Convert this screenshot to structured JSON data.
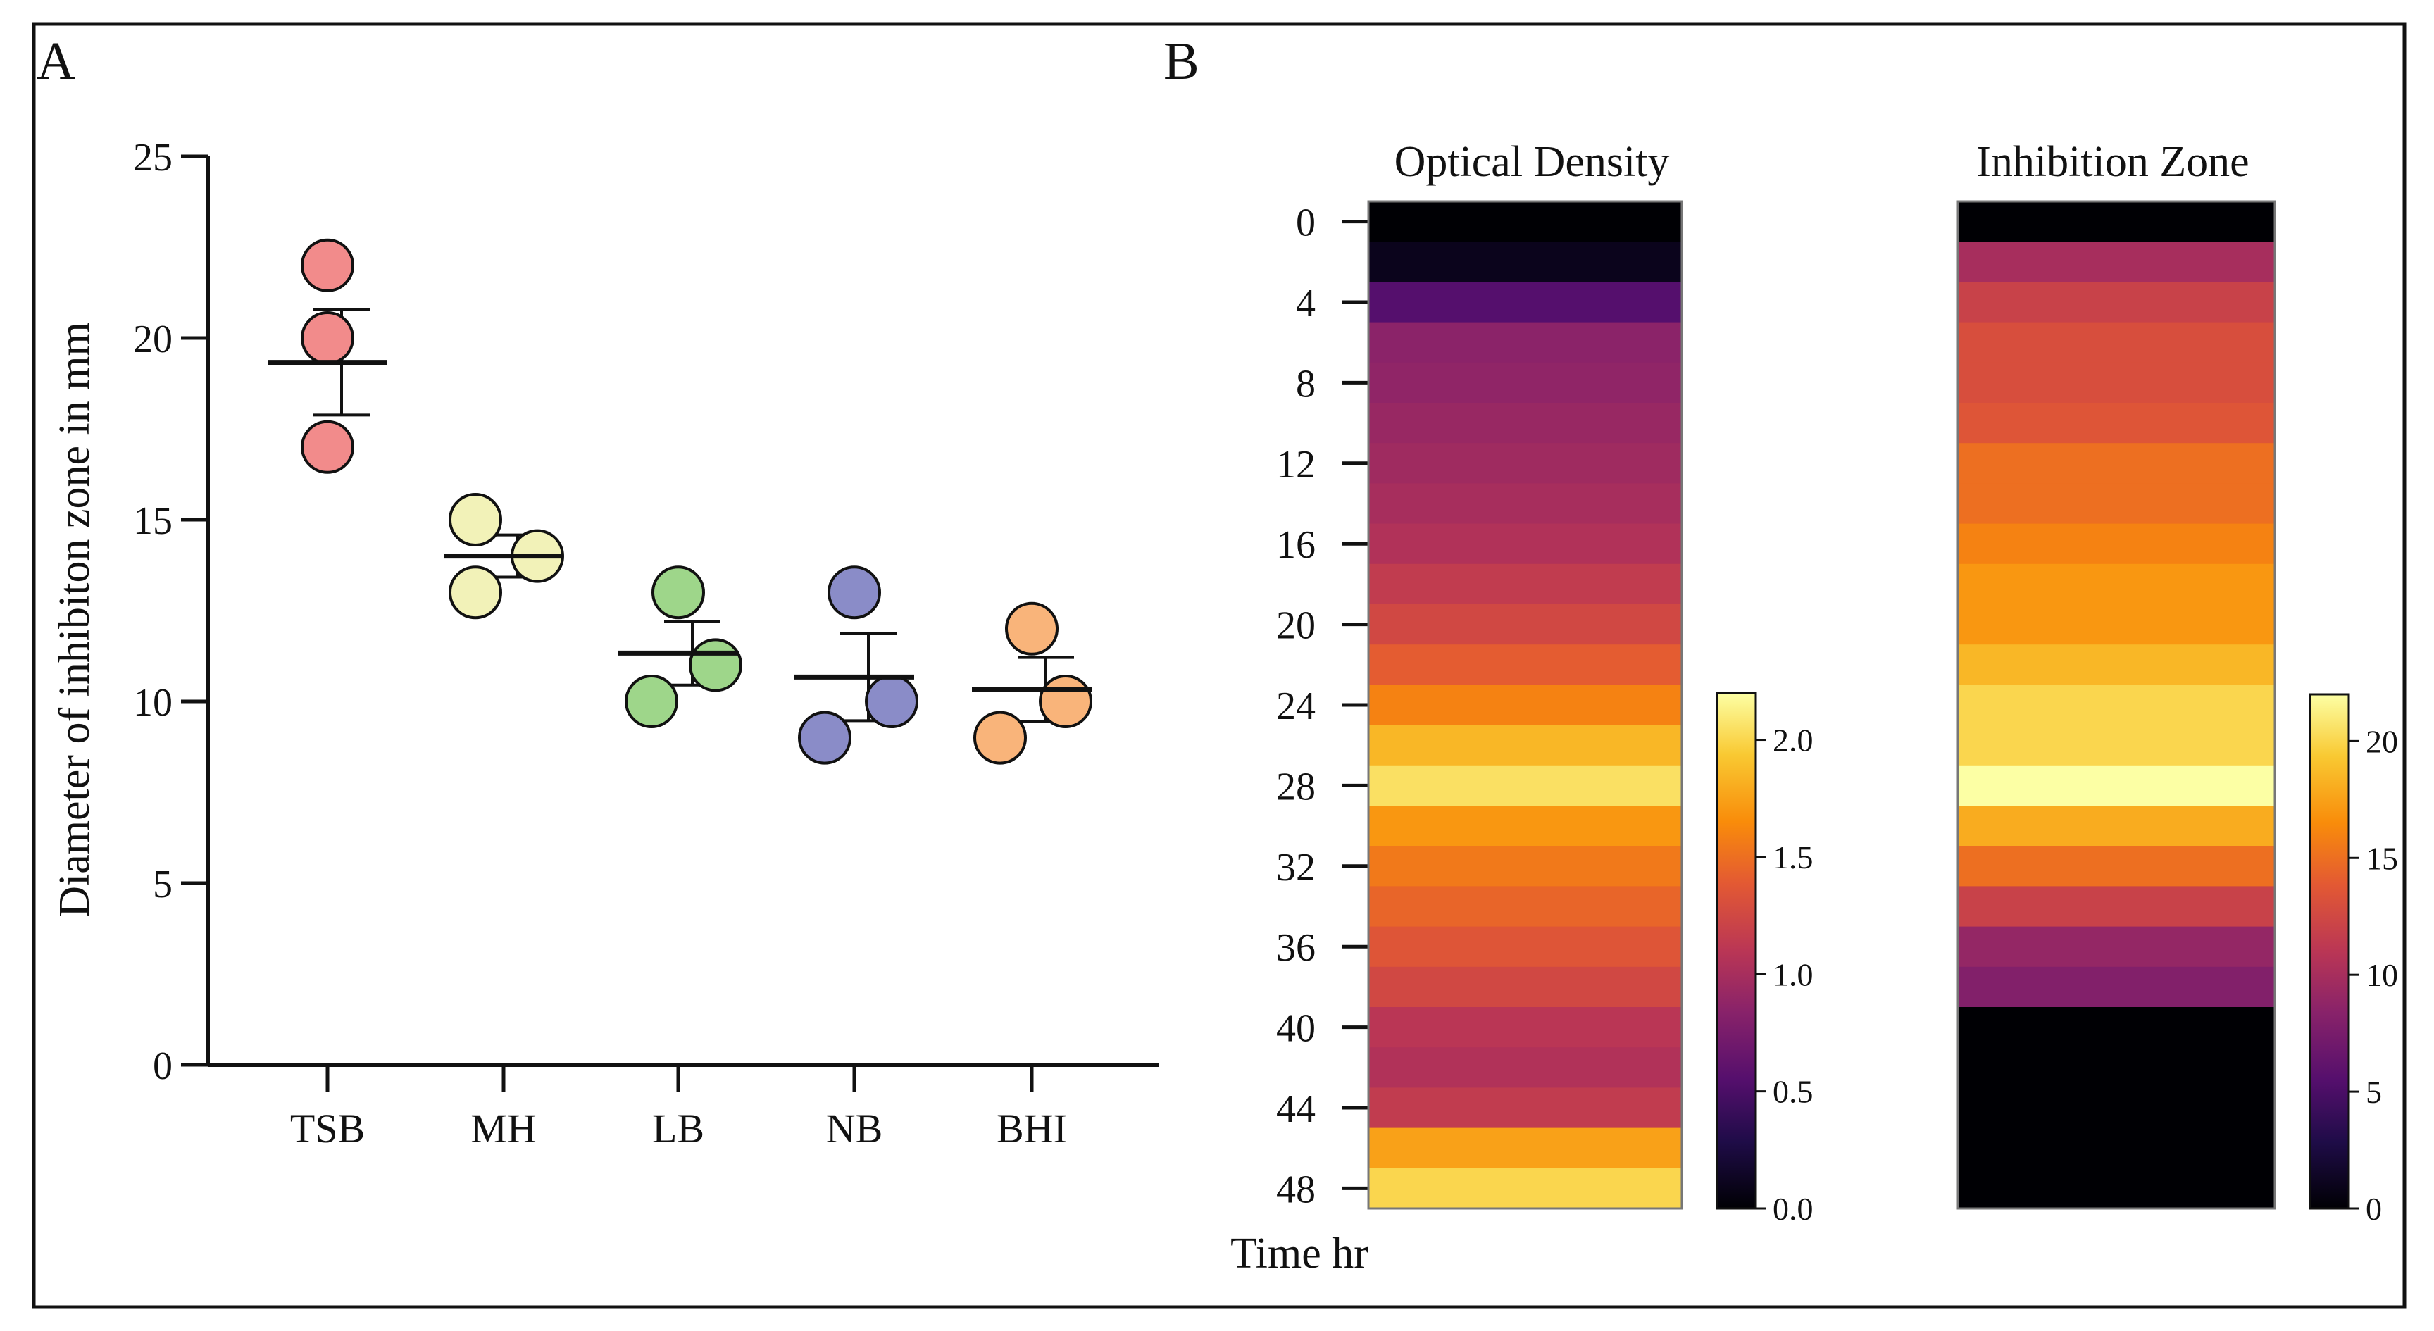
{
  "panels": {
    "a": {
      "label": "A"
    },
    "b": {
      "label": "B"
    }
  },
  "chart_data": [
    {
      "type": "scatter",
      "panel": "A",
      "ylabel": "Diameter of inhibiton zone in mm",
      "xlabel": "",
      "ylim": [
        0,
        25
      ],
      "yticks": [
        0,
        5,
        10,
        15,
        20,
        25
      ],
      "categories": [
        "TSB",
        "MH",
        "LB",
        "NB",
        "BHI"
      ],
      "points": [
        [
          22,
          20,
          17
        ],
        [
          15,
          14,
          13
        ],
        [
          13,
          11,
          10
        ],
        [
          13,
          10,
          9
        ],
        [
          12,
          10,
          9
        ]
      ],
      "mean": [
        19.33,
        14.0,
        11.33,
        10.67,
        10.33
      ],
      "sem": [
        1.45,
        0.58,
        0.88,
        1.2,
        0.88
      ],
      "colors": [
        "#F28B8B",
        "#F2F2B8",
        "#9ED68A",
        "#8A8CC8",
        "#F9B47A"
      ]
    },
    {
      "type": "heatmap",
      "panel": "B",
      "title": "Optical Density",
      "ylabel": "Time hr",
      "rows": [
        0,
        2,
        4,
        6,
        8,
        10,
        12,
        14,
        16,
        18,
        20,
        22,
        24,
        26,
        28,
        30,
        32,
        34,
        36,
        38,
        40,
        42,
        44,
        46,
        48
      ],
      "ytick_labels": [
        "0",
        "4",
        "8",
        "12",
        "16",
        "20",
        "24",
        "28",
        "32",
        "36",
        "40",
        "44",
        "48"
      ],
      "values": [
        0.0,
        0.1,
        0.55,
        0.85,
        0.88,
        0.92,
        0.96,
        1.0,
        1.05,
        1.15,
        1.25,
        1.4,
        1.6,
        1.85,
        2.05,
        1.7,
        1.55,
        1.45,
        1.35,
        1.25,
        1.1,
        1.05,
        1.15,
        1.75,
        2.0
      ],
      "colorbar": {
        "min": 0.0,
        "max": 2.2,
        "ticks": [
          "0.0",
          "0.5",
          "1.0",
          "1.5",
          "2.0"
        ]
      }
    },
    {
      "type": "heatmap",
      "panel": "B",
      "title": "Inhibition Zone",
      "rows": [
        0,
        2,
        4,
        6,
        8,
        10,
        12,
        14,
        16,
        18,
        20,
        22,
        24,
        26,
        28,
        30,
        32,
        34,
        36,
        38,
        40,
        42,
        44,
        46,
        48
      ],
      "values": [
        0,
        10,
        12,
        13,
        13,
        13.5,
        15,
        15,
        16,
        17,
        17,
        18.5,
        20,
        20,
        22,
        18,
        15,
        12,
        9,
        8,
        0,
        0,
        0,
        0,
        0
      ],
      "colorbar": {
        "min": 0,
        "max": 22,
        "ticks": [
          "0",
          "5",
          "10",
          "15",
          "20"
        ]
      }
    }
  ]
}
